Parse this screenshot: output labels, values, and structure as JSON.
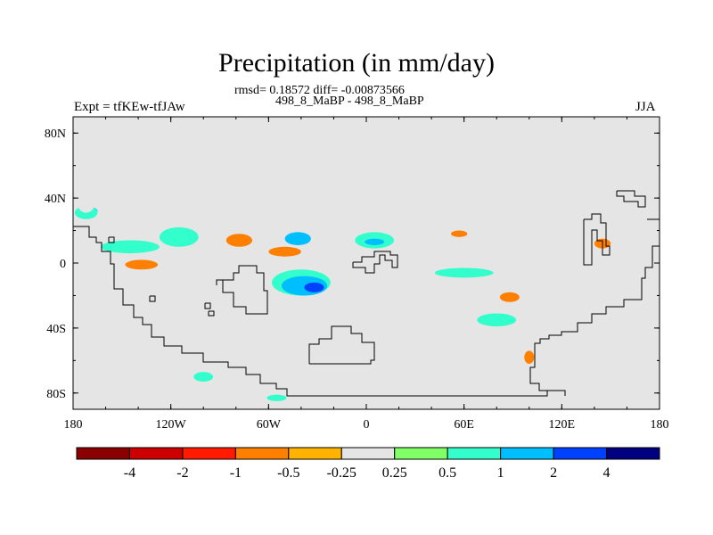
{
  "chart_data": {
    "type": "heatmap",
    "title": "Precipitation (in mm/day)",
    "stats_line": "rmsd= 0.18572 diff= -0.00873566",
    "case_line": "498_8_MaBP - 498_8_MaBP",
    "left_label": "Expt = tfKEw-tfJAw",
    "right_label": "JJA",
    "x_ticks": [
      {
        "lon": -180,
        "label": "180"
      },
      {
        "lon": -120,
        "label": "120W"
      },
      {
        "lon": -60,
        "label": "60W"
      },
      {
        "lon": 0,
        "label": "0"
      },
      {
        "lon": 60,
        "label": "60E"
      },
      {
        "lon": 120,
        "label": "120E"
      },
      {
        "lon": 180,
        "label": "180"
      }
    ],
    "y_ticks": [
      {
        "lat": 80,
        "label": "80N"
      },
      {
        "lat": 40,
        "label": "40N"
      },
      {
        "lat": 0,
        "label": "0"
      },
      {
        "lat": -40,
        "label": "40S"
      },
      {
        "lat": -80,
        "label": "80S"
      }
    ],
    "xlim": [
      -180,
      180
    ],
    "ylim": [
      -90,
      90
    ],
    "background_color": "#e5e5e5",
    "colorbar": {
      "colors": [
        "#8b0000",
        "#cc0000",
        "#ff1a00",
        "#ff7f00",
        "#ffb300",
        "#e5e5e5",
        "#80ff66",
        "#33ffcc",
        "#00bfff",
        "#0040ff",
        "#000080"
      ],
      "labels": [
        "-4",
        "-2",
        "-1",
        "-0.5",
        "-0.25",
        "0.25",
        "0.5",
        "1",
        "2",
        "4"
      ]
    },
    "anomalies": [
      {
        "lon": -170,
        "lat": 32,
        "rlon": 5,
        "rlat": 2.5,
        "value": 1
      },
      {
        "lon": -172,
        "lat": 31,
        "rlon": 7,
        "rlat": 4,
        "value": 0.5
      },
      {
        "lon": -172,
        "lat": 36,
        "rlon": 5,
        "rlat": 5,
        "value": -0.25
      },
      {
        "lon": -175,
        "lat": 17,
        "rlon": 4,
        "rlat": 4,
        "value": -0.25
      },
      {
        "lon": -172,
        "lat": 2,
        "rlon": 6,
        "rlat": 3,
        "value": -0.25
      },
      {
        "lon": -145,
        "lat": 10,
        "rlon": 18,
        "rlat": 4,
        "value": 0.5
      },
      {
        "lon": -138,
        "lat": -2,
        "rlon": 14,
        "rlat": 6,
        "value": -0.25
      },
      {
        "lon": -138,
        "lat": -1,
        "rlon": 10,
        "rlat": 3,
        "value": -1
      },
      {
        "lon": -115,
        "lat": 16,
        "rlon": 12,
        "rlat": 6,
        "value": 0.5
      },
      {
        "lon": -75,
        "lat": 18,
        "rlon": 25,
        "rlat": 8,
        "value": -0.25
      },
      {
        "lon": -78,
        "lat": 14,
        "rlon": 8,
        "rlat": 4,
        "value": -1
      },
      {
        "lon": -50,
        "lat": 30,
        "rlon": 10,
        "rlat": 5,
        "value": -0.25
      },
      {
        "lon": -50,
        "lat": 7,
        "rlon": 10,
        "rlat": 3,
        "value": -1
      },
      {
        "lon": -42,
        "lat": 15,
        "rlon": 8,
        "rlat": 4,
        "value": 1
      },
      {
        "lon": -40,
        "lat": -12,
        "rlon": 18,
        "rlat": 8,
        "value": 0.5
      },
      {
        "lon": -38,
        "lat": -14,
        "rlon": 14,
        "rlat": 6,
        "value": 1
      },
      {
        "lon": -32,
        "lat": -15,
        "rlon": 6,
        "rlat": 3,
        "value": 2
      },
      {
        "lon": -10,
        "lat": 13,
        "rlon": 15,
        "rlat": 6,
        "value": -0.25
      },
      {
        "lon": 5,
        "lat": 14,
        "rlon": 12,
        "rlat": 5,
        "value": 0.5
      },
      {
        "lon": 5,
        "lat": 13,
        "rlon": 6,
        "rlat": 2,
        "value": 1
      },
      {
        "lon": 52,
        "lat": 18,
        "rlon": 15,
        "rlat": 5,
        "value": -0.25
      },
      {
        "lon": 57,
        "lat": 18,
        "rlon": 5,
        "rlat": 2,
        "value": -1
      },
      {
        "lon": 60,
        "lat": -6,
        "rlon": 18,
        "rlat": 3,
        "value": 0.5
      },
      {
        "lon": 85,
        "lat": -20,
        "rlon": 14,
        "rlat": 5,
        "value": -0.25
      },
      {
        "lon": 88,
        "lat": -21,
        "rlon": 6,
        "rlat": 3,
        "value": -1
      },
      {
        "lon": 80,
        "lat": -35,
        "rlon": 12,
        "rlat": 4,
        "value": 0.5
      },
      {
        "lon": 100,
        "lat": 15,
        "rlon": 12,
        "rlat": 4,
        "value": -0.25
      },
      {
        "lon": 140,
        "lat": 10,
        "rlon": 15,
        "rlat": 6,
        "value": -0.25
      },
      {
        "lon": 145,
        "lat": 12,
        "rlon": 5,
        "rlat": 3,
        "value": -1
      },
      {
        "lon": 172,
        "lat": 18,
        "rlon": 8,
        "rlat": 4,
        "value": -0.25
      },
      {
        "lon": 100,
        "lat": -55,
        "rlon": 6,
        "rlat": 10,
        "value": -0.25
      },
      {
        "lon": 100,
        "lat": -58,
        "rlon": 3,
        "rlat": 4,
        "value": -1
      },
      {
        "lon": 125,
        "lat": -62,
        "rlon": 8,
        "rlat": 2,
        "value": -0.25
      },
      {
        "lon": -100,
        "lat": -70,
        "rlon": 6,
        "rlat": 3,
        "value": 0.5
      },
      {
        "lon": -165,
        "lat": -50,
        "rlon": 4,
        "rlat": 5,
        "value": -0.25
      },
      {
        "lon": -125,
        "lat": -35,
        "rlon": 3,
        "rlat": 3,
        "value": -0.25
      },
      {
        "lon": -55,
        "lat": -83,
        "rlon": 6,
        "rlat": 2,
        "value": 0.5
      },
      {
        "lon": 50,
        "lat": -60,
        "rlon": 4,
        "rlat": 3,
        "value": -0.25
      },
      {
        "lon": -120,
        "lat": 25,
        "rlon": 3,
        "rlat": 2,
        "value": -0.25
      }
    ]
  }
}
